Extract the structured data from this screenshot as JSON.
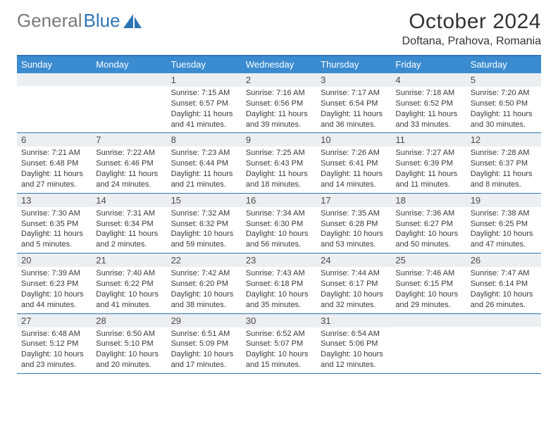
{
  "logo": {
    "text1": "General",
    "text2": "Blue"
  },
  "title": "October 2024",
  "location": "Doftana, Prahova, Romania",
  "weekdays": [
    "Sunday",
    "Monday",
    "Tuesday",
    "Wednesday",
    "Thursday",
    "Friday",
    "Saturday"
  ],
  "colors": {
    "accent": "#2e74b5",
    "header_bg": "#3b8bd0",
    "band": "#eceff1",
    "text": "#333333"
  },
  "weeks": [
    [
      null,
      null,
      {
        "n": "1",
        "sr": "Sunrise: 7:15 AM",
        "ss": "Sunset: 6:57 PM",
        "d1": "Daylight: 11 hours",
        "d2": "and 41 minutes."
      },
      {
        "n": "2",
        "sr": "Sunrise: 7:16 AM",
        "ss": "Sunset: 6:56 PM",
        "d1": "Daylight: 11 hours",
        "d2": "and 39 minutes."
      },
      {
        "n": "3",
        "sr": "Sunrise: 7:17 AM",
        "ss": "Sunset: 6:54 PM",
        "d1": "Daylight: 11 hours",
        "d2": "and 36 minutes."
      },
      {
        "n": "4",
        "sr": "Sunrise: 7:18 AM",
        "ss": "Sunset: 6:52 PM",
        "d1": "Daylight: 11 hours",
        "d2": "and 33 minutes."
      },
      {
        "n": "5",
        "sr": "Sunrise: 7:20 AM",
        "ss": "Sunset: 6:50 PM",
        "d1": "Daylight: 11 hours",
        "d2": "and 30 minutes."
      }
    ],
    [
      {
        "n": "6",
        "sr": "Sunrise: 7:21 AM",
        "ss": "Sunset: 6:48 PM",
        "d1": "Daylight: 11 hours",
        "d2": "and 27 minutes."
      },
      {
        "n": "7",
        "sr": "Sunrise: 7:22 AM",
        "ss": "Sunset: 6:46 PM",
        "d1": "Daylight: 11 hours",
        "d2": "and 24 minutes."
      },
      {
        "n": "8",
        "sr": "Sunrise: 7:23 AM",
        "ss": "Sunset: 6:44 PM",
        "d1": "Daylight: 11 hours",
        "d2": "and 21 minutes."
      },
      {
        "n": "9",
        "sr": "Sunrise: 7:25 AM",
        "ss": "Sunset: 6:43 PM",
        "d1": "Daylight: 11 hours",
        "d2": "and 18 minutes."
      },
      {
        "n": "10",
        "sr": "Sunrise: 7:26 AM",
        "ss": "Sunset: 6:41 PM",
        "d1": "Daylight: 11 hours",
        "d2": "and 14 minutes."
      },
      {
        "n": "11",
        "sr": "Sunrise: 7:27 AM",
        "ss": "Sunset: 6:39 PM",
        "d1": "Daylight: 11 hours",
        "d2": "and 11 minutes."
      },
      {
        "n": "12",
        "sr": "Sunrise: 7:28 AM",
        "ss": "Sunset: 6:37 PM",
        "d1": "Daylight: 11 hours",
        "d2": "and 8 minutes."
      }
    ],
    [
      {
        "n": "13",
        "sr": "Sunrise: 7:30 AM",
        "ss": "Sunset: 6:35 PM",
        "d1": "Daylight: 11 hours",
        "d2": "and 5 minutes."
      },
      {
        "n": "14",
        "sr": "Sunrise: 7:31 AM",
        "ss": "Sunset: 6:34 PM",
        "d1": "Daylight: 11 hours",
        "d2": "and 2 minutes."
      },
      {
        "n": "15",
        "sr": "Sunrise: 7:32 AM",
        "ss": "Sunset: 6:32 PM",
        "d1": "Daylight: 10 hours",
        "d2": "and 59 minutes."
      },
      {
        "n": "16",
        "sr": "Sunrise: 7:34 AM",
        "ss": "Sunset: 6:30 PM",
        "d1": "Daylight: 10 hours",
        "d2": "and 56 minutes."
      },
      {
        "n": "17",
        "sr": "Sunrise: 7:35 AM",
        "ss": "Sunset: 6:28 PM",
        "d1": "Daylight: 10 hours",
        "d2": "and 53 minutes."
      },
      {
        "n": "18",
        "sr": "Sunrise: 7:36 AM",
        "ss": "Sunset: 6:27 PM",
        "d1": "Daylight: 10 hours",
        "d2": "and 50 minutes."
      },
      {
        "n": "19",
        "sr": "Sunrise: 7:38 AM",
        "ss": "Sunset: 6:25 PM",
        "d1": "Daylight: 10 hours",
        "d2": "and 47 minutes."
      }
    ],
    [
      {
        "n": "20",
        "sr": "Sunrise: 7:39 AM",
        "ss": "Sunset: 6:23 PM",
        "d1": "Daylight: 10 hours",
        "d2": "and 44 minutes."
      },
      {
        "n": "21",
        "sr": "Sunrise: 7:40 AM",
        "ss": "Sunset: 6:22 PM",
        "d1": "Daylight: 10 hours",
        "d2": "and 41 minutes."
      },
      {
        "n": "22",
        "sr": "Sunrise: 7:42 AM",
        "ss": "Sunset: 6:20 PM",
        "d1": "Daylight: 10 hours",
        "d2": "and 38 minutes."
      },
      {
        "n": "23",
        "sr": "Sunrise: 7:43 AM",
        "ss": "Sunset: 6:18 PM",
        "d1": "Daylight: 10 hours",
        "d2": "and 35 minutes."
      },
      {
        "n": "24",
        "sr": "Sunrise: 7:44 AM",
        "ss": "Sunset: 6:17 PM",
        "d1": "Daylight: 10 hours",
        "d2": "and 32 minutes."
      },
      {
        "n": "25",
        "sr": "Sunrise: 7:46 AM",
        "ss": "Sunset: 6:15 PM",
        "d1": "Daylight: 10 hours",
        "d2": "and 29 minutes."
      },
      {
        "n": "26",
        "sr": "Sunrise: 7:47 AM",
        "ss": "Sunset: 6:14 PM",
        "d1": "Daylight: 10 hours",
        "d2": "and 26 minutes."
      }
    ],
    [
      {
        "n": "27",
        "sr": "Sunrise: 6:48 AM",
        "ss": "Sunset: 5:12 PM",
        "d1": "Daylight: 10 hours",
        "d2": "and 23 minutes."
      },
      {
        "n": "28",
        "sr": "Sunrise: 6:50 AM",
        "ss": "Sunset: 5:10 PM",
        "d1": "Daylight: 10 hours",
        "d2": "and 20 minutes."
      },
      {
        "n": "29",
        "sr": "Sunrise: 6:51 AM",
        "ss": "Sunset: 5:09 PM",
        "d1": "Daylight: 10 hours",
        "d2": "and 17 minutes."
      },
      {
        "n": "30",
        "sr": "Sunrise: 6:52 AM",
        "ss": "Sunset: 5:07 PM",
        "d1": "Daylight: 10 hours",
        "d2": "and 15 minutes."
      },
      {
        "n": "31",
        "sr": "Sunrise: 6:54 AM",
        "ss": "Sunset: 5:06 PM",
        "d1": "Daylight: 10 hours",
        "d2": "and 12 minutes."
      },
      null,
      null
    ]
  ]
}
